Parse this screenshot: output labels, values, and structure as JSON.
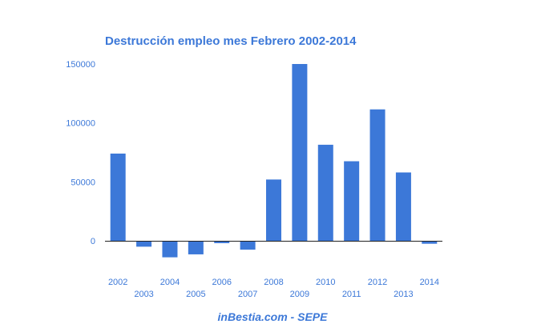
{
  "colors": {
    "bar": "#3c78d8",
    "text": "#3c78d8",
    "axis": "#222222"
  },
  "source": "inBestia.com - SEPE",
  "chart_data": {
    "type": "bar",
    "title": "Destrucción empleo mes Febrero 2002-2014",
    "xlabel": "",
    "ylabel": "",
    "categories": [
      "2002",
      "2003",
      "2004",
      "2005",
      "2006",
      "2007",
      "2008",
      "2009",
      "2010",
      "2011",
      "2012",
      "2013",
      "2014"
    ],
    "values": [
      74000,
      -5000,
      -14000,
      -11500,
      -2000,
      -7500,
      52000,
      150000,
      81500,
      67500,
      111500,
      58000,
      -2500
    ],
    "ylim": [
      -30000,
      150000
    ],
    "yticks": [
      0,
      50000,
      100000,
      150000
    ],
    "ytick_labels": [
      "0",
      "50000",
      "100000",
      "150000"
    ],
    "grid": false,
    "legend": "none"
  }
}
